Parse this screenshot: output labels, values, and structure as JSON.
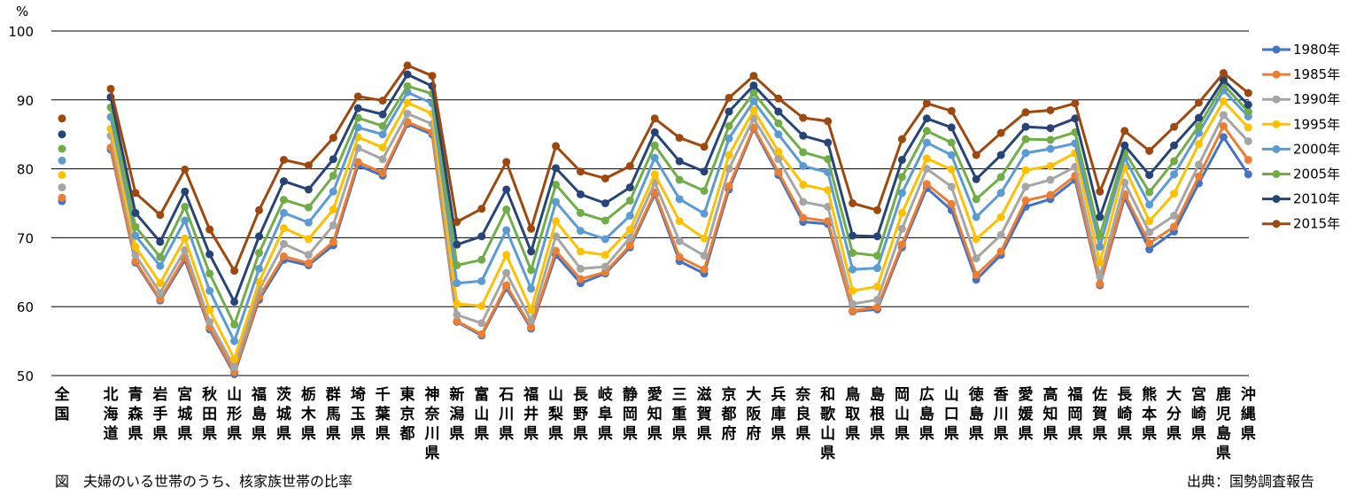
{
  "caption": "図　夫婦のいる世帯のうち、核家族世帯の比率",
  "source": "出典：国勢調査報告",
  "chart_data": {
    "type": "line",
    "ylabel": "%",
    "ylim": [
      50,
      100
    ],
    "yticks": [
      50,
      60,
      70,
      80,
      90,
      100
    ],
    "grid": true,
    "legend_position": "right",
    "national_label": "全国",
    "national": [
      75.3,
      75.8,
      77.3,
      79.1,
      81.2,
      82.9,
      85.0,
      87.3
    ],
    "categories": [
      "北海道",
      "青森県",
      "岩手県",
      "宮城県",
      "秋田県",
      "山形県",
      "福島県",
      "茨城県",
      "栃木県",
      "群馬県",
      "埼玉県",
      "千葉県",
      "東京都",
      "神奈川県",
      "新潟県",
      "富山県",
      "石川県",
      "福井県",
      "山梨県",
      "長野県",
      "岐阜県",
      "静岡県",
      "愛知県",
      "三重県",
      "滋賀県",
      "京都府",
      "大阪府",
      "兵庫県",
      "奈良県",
      "和歌山県",
      "鳥取県",
      "島根県",
      "岡山県",
      "広島県",
      "山口県",
      "徳島県",
      "香川県",
      "愛媛県",
      "高知県",
      "福岡県",
      "佐賀県",
      "長崎県",
      "熊本県",
      "大分県",
      "宮崎県",
      "鹿児島県",
      "沖縄県"
    ],
    "series": [
      {
        "name": "1980年",
        "color": "#4472C4",
        "values": [
          82.8,
          66.4,
          60.9,
          66.8,
          56.7,
          50.2,
          61.0,
          66.8,
          66.0,
          68.9,
          80.5,
          79.0,
          86.5,
          85.0,
          57.8,
          55.8,
          62.7,
          56.8,
          67.5,
          63.4,
          64.8,
          68.6,
          76.3,
          66.6,
          64.8,
          77.0,
          85.8,
          79.1,
          72.3,
          72.0,
          59.3,
          59.6,
          68.6,
          77.2,
          74.0,
          63.9,
          67.5,
          74.5,
          75.6,
          78.4,
          63.1,
          75.8,
          68.3,
          70.9,
          77.9,
          84.6,
          79.2
        ]
      },
      {
        "name": "1985年",
        "color": "#ED7D31",
        "values": [
          83.1,
          66.6,
          61.1,
          67.2,
          57.0,
          50.5,
          61.4,
          67.3,
          66.3,
          69.4,
          81.0,
          79.4,
          86.8,
          85.3,
          57.9,
          56.0,
          63.1,
          57.0,
          68.1,
          64.0,
          65.0,
          68.9,
          76.6,
          67.2,
          65.4,
          77.5,
          86.0,
          79.5,
          72.9,
          72.4,
          59.4,
          59.9,
          69.0,
          77.8,
          74.9,
          64.6,
          68.0,
          75.4,
          76.2,
          79.0,
          63.3,
          76.3,
          69.2,
          71.6,
          78.9,
          86.2,
          81.3
        ]
      },
      {
        "name": "1990年",
        "color": "#A5A5A5",
        "values": [
          84.8,
          67.5,
          62.0,
          68.2,
          57.8,
          51.2,
          62.4,
          69.1,
          67.5,
          71.8,
          83.0,
          81.4,
          88.0,
          86.5,
          58.8,
          57.6,
          64.9,
          58.0,
          70.2,
          65.5,
          65.8,
          70.0,
          78.0,
          69.5,
          67.4,
          80.0,
          87.3,
          81.4,
          75.2,
          74.5,
          60.4,
          61.0,
          71.3,
          80.0,
          77.4,
          67.0,
          70.4,
          77.4,
          78.4,
          80.3,
          64.4,
          78.0,
          70.8,
          73.2,
          80.6,
          87.8,
          84.0
        ]
      },
      {
        "name": "1995年",
        "color": "#FFC000",
        "values": [
          85.8,
          68.7,
          63.4,
          69.9,
          59.5,
          52.4,
          63.6,
          71.4,
          69.8,
          74.1,
          84.6,
          83.1,
          89.6,
          88.0,
          60.4,
          60.1,
          67.5,
          59.5,
          72.4,
          68.0,
          67.5,
          71.2,
          79.2,
          72.4,
          69.9,
          82.0,
          88.5,
          82.5,
          77.7,
          76.9,
          62.3,
          62.9,
          73.6,
          81.5,
          79.9,
          69.8,
          73.0,
          79.8,
          80.4,
          82.3,
          66.4,
          80.2,
          72.4,
          76.4,
          83.6,
          89.8,
          86.0
        ]
      },
      {
        "name": "2000年",
        "color": "#5B9BD5",
        "values": [
          87.5,
          70.3,
          65.9,
          72.5,
          62.3,
          55.0,
          65.5,
          73.6,
          72.2,
          76.7,
          86.0,
          85.0,
          91.1,
          89.5,
          63.4,
          63.7,
          71.1,
          62.6,
          75.2,
          71.0,
          69.8,
          73.2,
          81.6,
          75.6,
          73.5,
          84.4,
          89.8,
          85.0,
          80.4,
          79.5,
          65.4,
          65.6,
          76.5,
          83.8,
          82.0,
          73.0,
          76.5,
          82.3,
          82.9,
          83.7,
          68.7,
          81.6,
          74.8,
          79.2,
          85.2,
          91.4,
          87.6
        ]
      },
      {
        "name": "2005年",
        "color": "#70AD47",
        "values": [
          88.9,
          71.6,
          67.2,
          74.5,
          64.8,
          57.4,
          67.8,
          75.5,
          74.4,
          79.0,
          87.4,
          86.2,
          92.0,
          90.9,
          66.0,
          66.8,
          74.1,
          65.3,
          77.7,
          73.6,
          72.5,
          75.4,
          83.4,
          78.4,
          76.8,
          86.2,
          91.0,
          86.6,
          82.4,
          81.4,
          67.8,
          67.4,
          78.8,
          85.5,
          83.8,
          75.6,
          78.8,
          84.3,
          84.2,
          85.3,
          70.3,
          82.5,
          76.6,
          81.1,
          86.2,
          92.2,
          88.3
        ]
      },
      {
        "name": "2010年",
        "color": "#264478",
        "values": [
          90.4,
          73.6,
          69.4,
          76.7,
          67.6,
          60.7,
          70.2,
          78.2,
          77.0,
          81.4,
          88.8,
          87.9,
          93.7,
          92.0,
          69.0,
          70.2,
          77.0,
          68.0,
          80.1,
          76.3,
          75.0,
          77.3,
          85.3,
          81.1,
          79.6,
          88.3,
          92.1,
          88.3,
          84.8,
          83.8,
          70.3,
          70.2,
          81.3,
          87.3,
          86.0,
          78.5,
          82.0,
          86.1,
          85.9,
          87.3,
          73.0,
          83.4,
          79.1,
          83.4,
          87.4,
          92.9,
          89.3
        ]
      },
      {
        "name": "2015年",
        "color": "#9E480E",
        "values": [
          91.6,
          76.5,
          73.3,
          79.9,
          71.2,
          65.2,
          74.0,
          81.3,
          80.5,
          84.5,
          90.5,
          89.9,
          95.0,
          93.5,
          72.3,
          74.2,
          81.0,
          71.3,
          83.3,
          79.6,
          78.6,
          80.4,
          87.3,
          84.5,
          83.2,
          90.3,
          93.5,
          90.2,
          87.4,
          86.9,
          75.0,
          74.0,
          84.3,
          89.5,
          88.4,
          82.0,
          85.2,
          88.2,
          88.5,
          89.5,
          76.7,
          85.5,
          82.6,
          86.1,
          89.6,
          93.9,
          91.0
        ]
      }
    ]
  }
}
